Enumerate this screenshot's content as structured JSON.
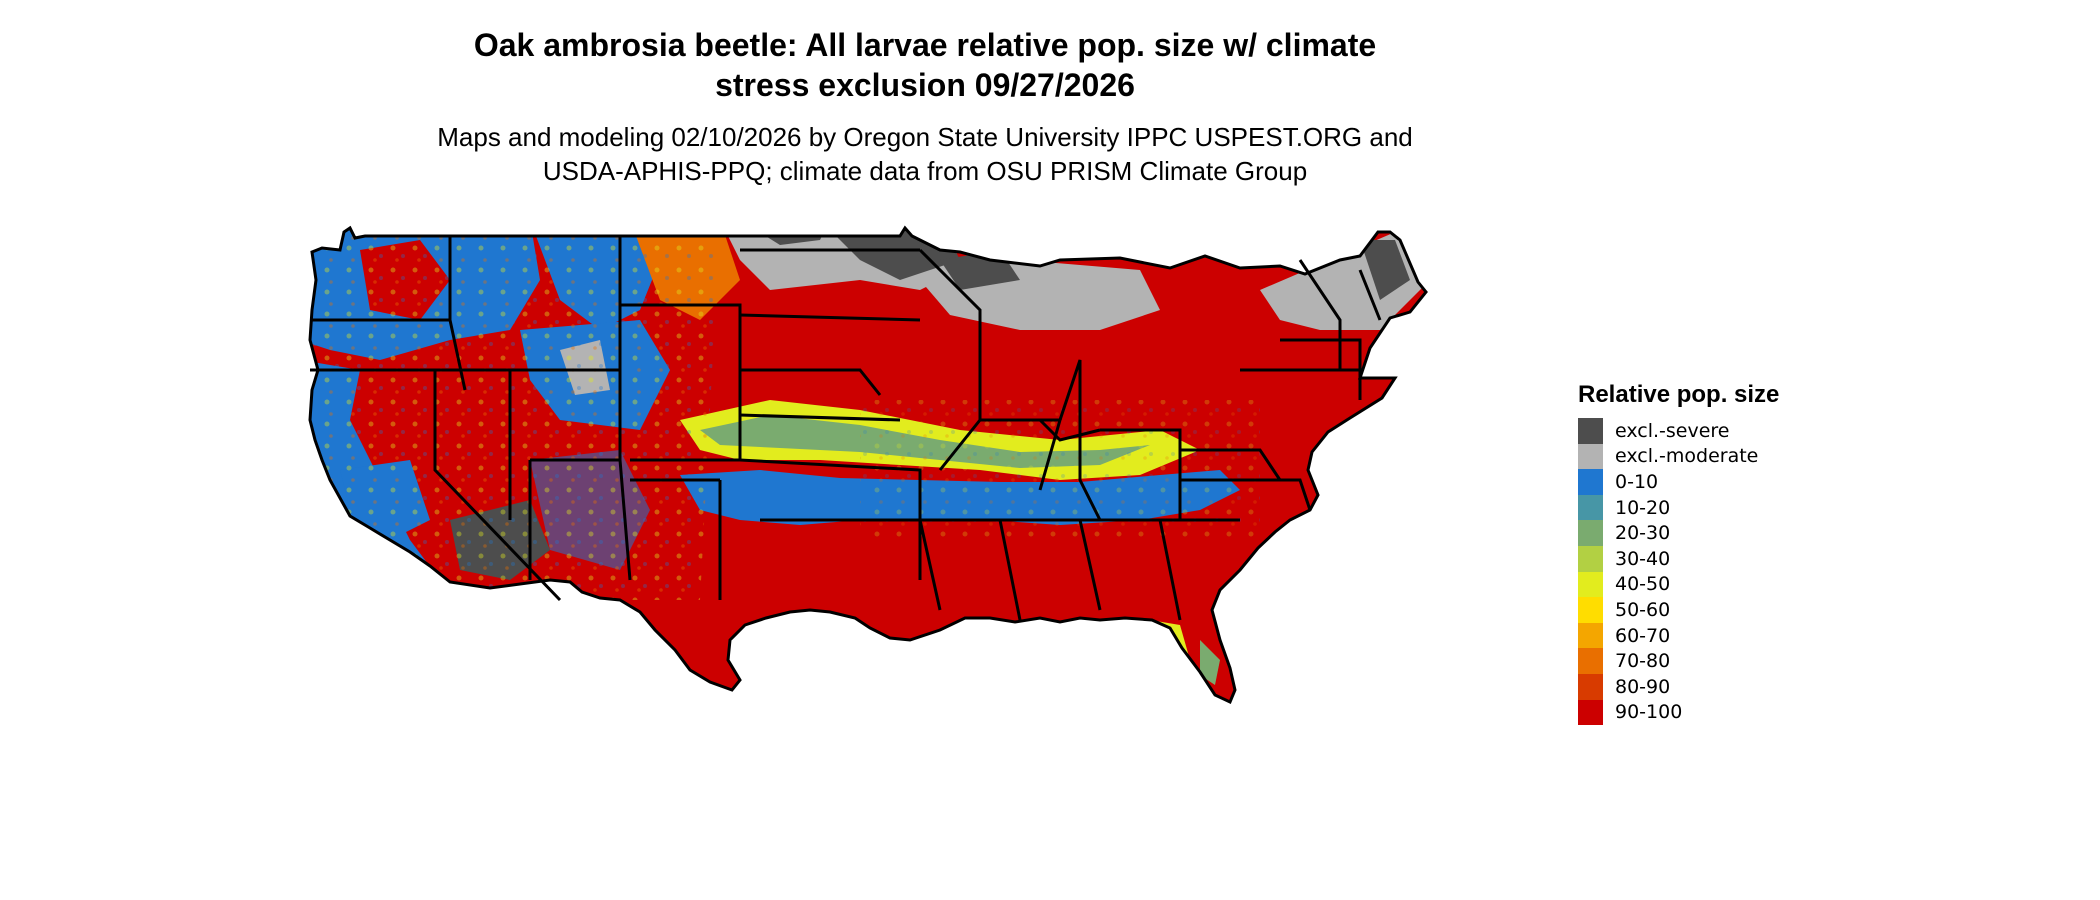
{
  "title_line1": "Oak ambrosia beetle: All larvae relative pop. size w/ climate",
  "title_line2": "stress exclusion 09/27/2026",
  "subtitle_line1": "Maps and modeling 02/10/2026 by Oregon State University IPPC USPEST.ORG and",
  "subtitle_line2": "USDA-APHIS-PPQ; climate data from OSU PRISM Climate Group",
  "legend": {
    "title": "Relative pop. size",
    "items": [
      {
        "label": "excl.-severe",
        "color": "#4d4d4d"
      },
      {
        "label": "excl.-moderate",
        "color": "#b3b3b3"
      },
      {
        "label": "0-10",
        "color": "#1f77d0"
      },
      {
        "label": "10-20",
        "color": "#4796a6"
      },
      {
        "label": "20-30",
        "color": "#7aab6f"
      },
      {
        "label": "30-40",
        "color": "#b2d043"
      },
      {
        "label": "40-50",
        "color": "#e2ec1e"
      },
      {
        "label": "50-60",
        "color": "#ffdd00"
      },
      {
        "label": "60-70",
        "color": "#f4a600"
      },
      {
        "label": "70-80",
        "color": "#e96f00"
      },
      {
        "label": "80-90",
        "color": "#d83b00"
      },
      {
        "label": "90-100",
        "color": "#cc0000"
      }
    ]
  }
}
